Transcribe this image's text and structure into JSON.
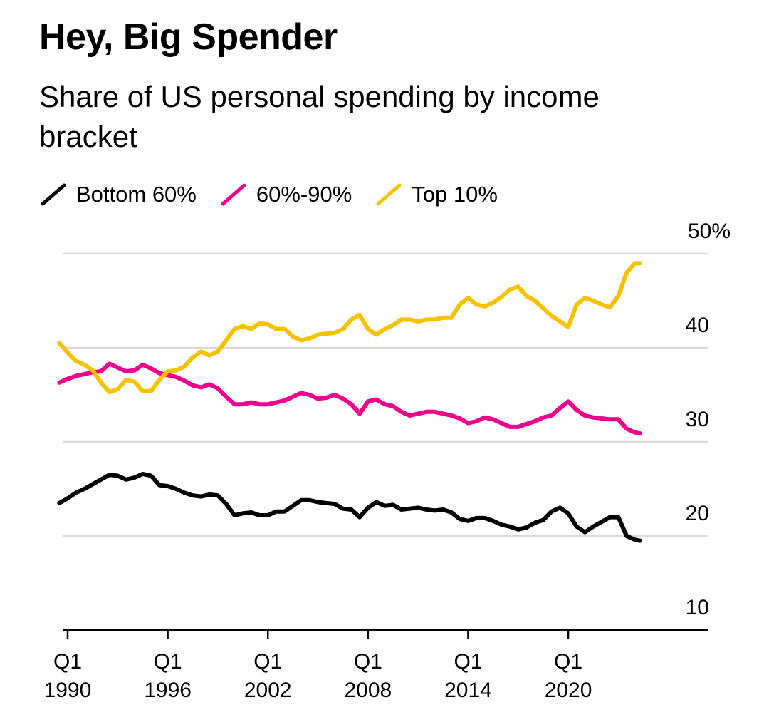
{
  "title": "Hey, Big Spender",
  "subtitle": "Share of US personal spending by income bracket",
  "legend": [
    {
      "label": "Bottom 60%",
      "color": "#000000",
      "icon": "slash-line-icon"
    },
    {
      "label": "60%-90%",
      "color": "#ec008c",
      "icon": "slash-line-icon"
    },
    {
      "label": "Top 10%",
      "color": "#f5c200",
      "icon": "slash-line-icon"
    }
  ],
  "chart_data": {
    "type": "line",
    "x_unit": "year",
    "xlim": [
      1989.75,
      2027.0
    ],
    "ylim": [
      10,
      50
    ],
    "y_ticks": [
      {
        "value": 50,
        "label": "50%"
      },
      {
        "value": 40,
        "label": "40"
      },
      {
        "value": 30,
        "label": "30"
      },
      {
        "value": 20,
        "label": "20"
      },
      {
        "value": 10,
        "label": "10"
      }
    ],
    "x_ticks": [
      {
        "value": 1990,
        "label_top": "Q1",
        "label_bottom": "1990"
      },
      {
        "value": 1996,
        "label_top": "Q1",
        "label_bottom": "1996"
      },
      {
        "value": 2002,
        "label_top": "Q1",
        "label_bottom": "2002"
      },
      {
        "value": 2008,
        "label_top": "Q1",
        "label_bottom": "2008"
      },
      {
        "value": 2014,
        "label_top": "Q1",
        "label_bottom": "2014"
      },
      {
        "value": 2020,
        "label_top": "Q1",
        "label_bottom": "2020"
      }
    ],
    "grid": true,
    "legend_position": "top-left",
    "y_axis_side": "right",
    "series": [
      {
        "name": "Bottom 60%",
        "color": "#000000",
        "points": [
          [
            1989.5,
            23.5
          ],
          [
            1990.0,
            24.0
          ],
          [
            1990.5,
            24.6
          ],
          [
            1991.0,
            25.0
          ],
          [
            1991.5,
            25.5
          ],
          [
            1992.0,
            26.0
          ],
          [
            1992.5,
            26.5
          ],
          [
            1993.0,
            26.4
          ],
          [
            1993.5,
            26.0
          ],
          [
            1994.0,
            26.2
          ],
          [
            1994.5,
            26.6
          ],
          [
            1995.0,
            26.4
          ],
          [
            1995.5,
            25.4
          ],
          [
            1996.0,
            25.3
          ],
          [
            1996.5,
            25.0
          ],
          [
            1997.0,
            24.6
          ],
          [
            1997.5,
            24.3
          ],
          [
            1998.0,
            24.2
          ],
          [
            1998.5,
            24.4
          ],
          [
            1999.0,
            24.3
          ],
          [
            1999.5,
            23.4
          ],
          [
            2000.0,
            22.2
          ],
          [
            2000.5,
            22.4
          ],
          [
            2001.0,
            22.5
          ],
          [
            2001.5,
            22.2
          ],
          [
            2002.0,
            22.2
          ],
          [
            2002.5,
            22.6
          ],
          [
            2003.0,
            22.6
          ],
          [
            2003.5,
            23.2
          ],
          [
            2004.0,
            23.8
          ],
          [
            2004.5,
            23.8
          ],
          [
            2005.0,
            23.6
          ],
          [
            2005.5,
            23.5
          ],
          [
            2006.0,
            23.4
          ],
          [
            2006.5,
            22.9
          ],
          [
            2007.0,
            22.8
          ],
          [
            2007.5,
            22.0
          ],
          [
            2008.0,
            23.0
          ],
          [
            2008.5,
            23.6
          ],
          [
            2009.0,
            23.2
          ],
          [
            2009.5,
            23.3
          ],
          [
            2010.0,
            22.8
          ],
          [
            2010.5,
            22.9
          ],
          [
            2011.0,
            23.0
          ],
          [
            2011.5,
            22.8
          ],
          [
            2012.0,
            22.7
          ],
          [
            2012.5,
            22.8
          ],
          [
            2013.0,
            22.5
          ],
          [
            2013.5,
            21.8
          ],
          [
            2014.0,
            21.6
          ],
          [
            2014.5,
            21.9
          ],
          [
            2015.0,
            21.9
          ],
          [
            2015.5,
            21.6
          ],
          [
            2016.0,
            21.2
          ],
          [
            2016.5,
            21.0
          ],
          [
            2017.0,
            20.7
          ],
          [
            2017.5,
            20.9
          ],
          [
            2018.0,
            21.4
          ],
          [
            2018.5,
            21.7
          ],
          [
            2019.0,
            22.6
          ],
          [
            2019.5,
            23.0
          ],
          [
            2020.0,
            22.4
          ],
          [
            2020.5,
            21.0
          ],
          [
            2021.0,
            20.4
          ],
          [
            2021.5,
            21.0
          ],
          [
            2022.0,
            21.5
          ],
          [
            2022.5,
            22.0
          ],
          [
            2023.0,
            22.0
          ],
          [
            2023.5,
            20.0
          ],
          [
            2024.0,
            19.6
          ],
          [
            2024.3,
            19.5
          ]
        ]
      },
      {
        "name": "60%-90%",
        "color": "#ec008c",
        "points": [
          [
            1989.5,
            36.3
          ],
          [
            1990.0,
            36.7
          ],
          [
            1990.5,
            37.0
          ],
          [
            1991.0,
            37.2
          ],
          [
            1991.5,
            37.4
          ],
          [
            1992.0,
            37.5
          ],
          [
            1992.5,
            38.3
          ],
          [
            1993.0,
            37.9
          ],
          [
            1993.5,
            37.5
          ],
          [
            1994.0,
            37.6
          ],
          [
            1994.5,
            38.2
          ],
          [
            1995.0,
            37.8
          ],
          [
            1995.5,
            37.3
          ],
          [
            1996.0,
            37.1
          ],
          [
            1996.5,
            36.9
          ],
          [
            1997.0,
            36.5
          ],
          [
            1997.5,
            36.0
          ],
          [
            1998.0,
            35.8
          ],
          [
            1998.5,
            36.1
          ],
          [
            1999.0,
            35.7
          ],
          [
            1999.5,
            34.8
          ],
          [
            2000.0,
            34.0
          ],
          [
            2000.5,
            34.0
          ],
          [
            2001.0,
            34.2
          ],
          [
            2001.5,
            34.0
          ],
          [
            2002.0,
            34.0
          ],
          [
            2002.5,
            34.2
          ],
          [
            2003.0,
            34.4
          ],
          [
            2003.5,
            34.8
          ],
          [
            2004.0,
            35.2
          ],
          [
            2004.5,
            35.0
          ],
          [
            2005.0,
            34.6
          ],
          [
            2005.5,
            34.7
          ],
          [
            2006.0,
            35.0
          ],
          [
            2006.5,
            34.6
          ],
          [
            2007.0,
            34.0
          ],
          [
            2007.5,
            33.0
          ],
          [
            2008.0,
            34.3
          ],
          [
            2008.5,
            34.5
          ],
          [
            2009.0,
            34.0
          ],
          [
            2009.5,
            33.8
          ],
          [
            2010.0,
            33.2
          ],
          [
            2010.5,
            32.8
          ],
          [
            2011.0,
            33.0
          ],
          [
            2011.5,
            33.2
          ],
          [
            2012.0,
            33.2
          ],
          [
            2012.5,
            33.0
          ],
          [
            2013.0,
            32.8
          ],
          [
            2013.5,
            32.5
          ],
          [
            2014.0,
            32.0
          ],
          [
            2014.5,
            32.2
          ],
          [
            2015.0,
            32.6
          ],
          [
            2015.5,
            32.4
          ],
          [
            2016.0,
            32.0
          ],
          [
            2016.5,
            31.6
          ],
          [
            2017.0,
            31.6
          ],
          [
            2017.5,
            31.9
          ],
          [
            2018.0,
            32.2
          ],
          [
            2018.5,
            32.6
          ],
          [
            2019.0,
            32.8
          ],
          [
            2019.5,
            33.6
          ],
          [
            2020.0,
            34.3
          ],
          [
            2020.5,
            33.4
          ],
          [
            2021.0,
            32.8
          ],
          [
            2021.5,
            32.6
          ],
          [
            2022.0,
            32.5
          ],
          [
            2022.5,
            32.4
          ],
          [
            2023.0,
            32.4
          ],
          [
            2023.5,
            31.4
          ],
          [
            2024.0,
            31.0
          ],
          [
            2024.3,
            30.9
          ]
        ]
      },
      {
        "name": "Top 10%",
        "color": "#f5c200",
        "points": [
          [
            1989.5,
            40.5
          ],
          [
            1990.0,
            39.5
          ],
          [
            1990.5,
            38.6
          ],
          [
            1991.0,
            38.2
          ],
          [
            1991.5,
            37.6
          ],
          [
            1992.0,
            36.3
          ],
          [
            1992.5,
            35.3
          ],
          [
            1993.0,
            35.6
          ],
          [
            1993.5,
            36.6
          ],
          [
            1994.0,
            36.4
          ],
          [
            1994.5,
            35.4
          ],
          [
            1995.0,
            35.4
          ],
          [
            1995.5,
            36.6
          ],
          [
            1996.0,
            37.5
          ],
          [
            1996.5,
            37.6
          ],
          [
            1997.0,
            38.0
          ],
          [
            1997.5,
            39.0
          ],
          [
            1998.0,
            39.6
          ],
          [
            1998.5,
            39.2
          ],
          [
            1999.0,
            39.6
          ],
          [
            1999.5,
            40.8
          ],
          [
            2000.0,
            42.0
          ],
          [
            2000.5,
            42.3
          ],
          [
            2001.0,
            42.0
          ],
          [
            2001.5,
            42.6
          ],
          [
            2002.0,
            42.5
          ],
          [
            2002.5,
            42.0
          ],
          [
            2003.0,
            42.0
          ],
          [
            2003.5,
            41.2
          ],
          [
            2004.0,
            40.8
          ],
          [
            2004.5,
            41.0
          ],
          [
            2005.0,
            41.4
          ],
          [
            2005.5,
            41.5
          ],
          [
            2006.0,
            41.6
          ],
          [
            2006.5,
            42.0
          ],
          [
            2007.0,
            43.0
          ],
          [
            2007.5,
            43.5
          ],
          [
            2008.0,
            42.0
          ],
          [
            2008.5,
            41.4
          ],
          [
            2009.0,
            42.0
          ],
          [
            2009.5,
            42.4
          ],
          [
            2010.0,
            43.0
          ],
          [
            2010.5,
            43.0
          ],
          [
            2011.0,
            42.8
          ],
          [
            2011.5,
            43.0
          ],
          [
            2012.0,
            43.0
          ],
          [
            2012.5,
            43.2
          ],
          [
            2013.0,
            43.2
          ],
          [
            2013.5,
            44.6
          ],
          [
            2014.0,
            45.3
          ],
          [
            2014.5,
            44.6
          ],
          [
            2015.0,
            44.4
          ],
          [
            2015.5,
            44.8
          ],
          [
            2016.0,
            45.4
          ],
          [
            2016.5,
            46.2
          ],
          [
            2017.0,
            46.5
          ],
          [
            2017.5,
            45.5
          ],
          [
            2018.0,
            45.0
          ],
          [
            2018.5,
            44.2
          ],
          [
            2019.0,
            43.4
          ],
          [
            2019.5,
            42.8
          ],
          [
            2020.0,
            42.2
          ],
          [
            2020.5,
            44.6
          ],
          [
            2021.0,
            45.3
          ],
          [
            2021.5,
            45.0
          ],
          [
            2022.0,
            44.6
          ],
          [
            2022.5,
            44.3
          ],
          [
            2023.0,
            45.5
          ],
          [
            2023.5,
            48.0
          ],
          [
            2024.0,
            49.0
          ],
          [
            2024.3,
            49.0
          ]
        ]
      }
    ]
  }
}
